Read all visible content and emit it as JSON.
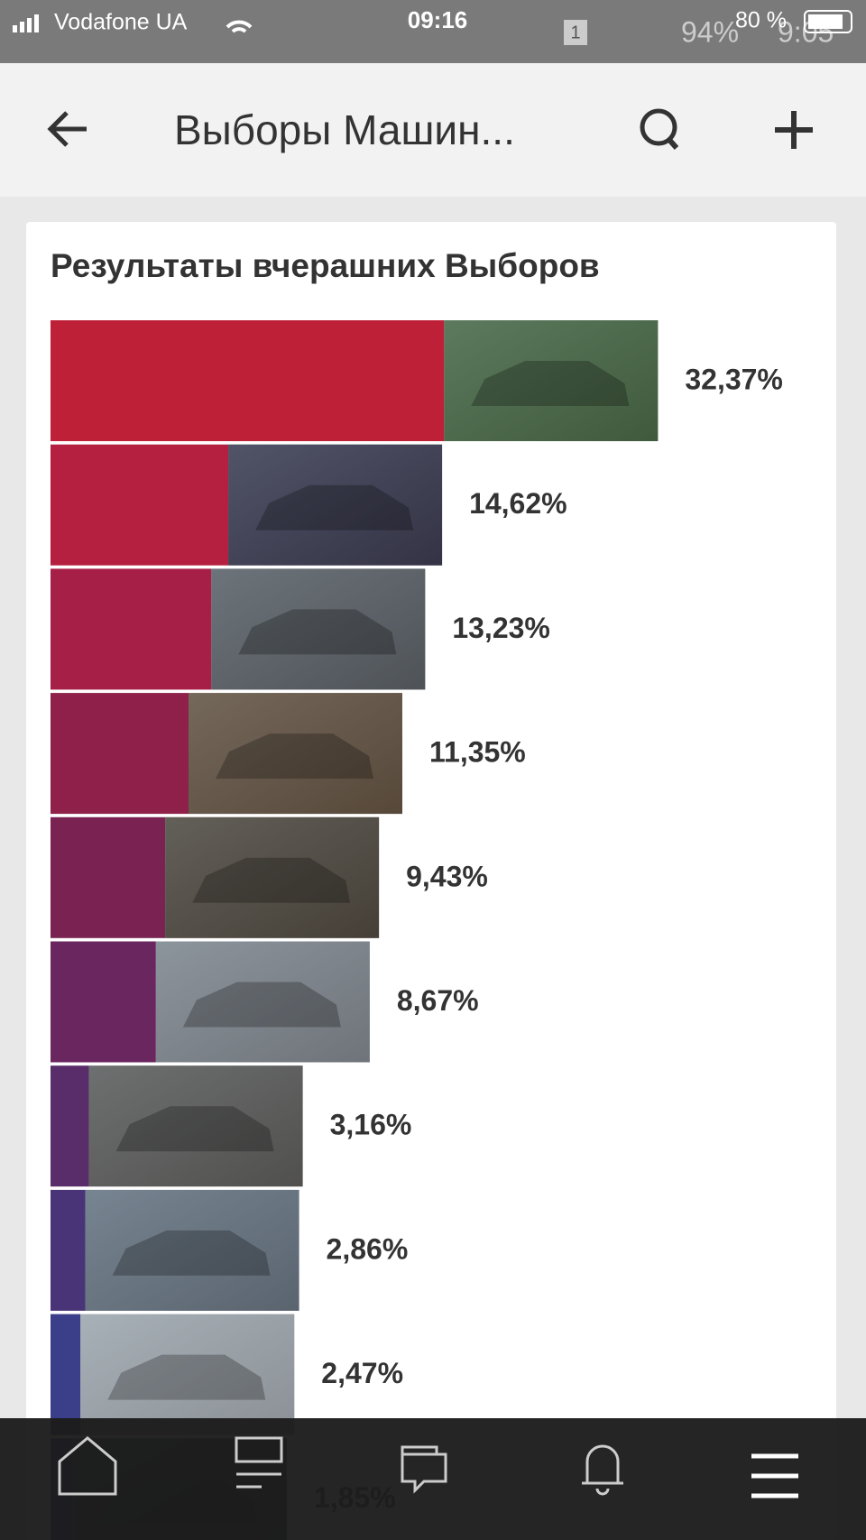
{
  "status_bar": {
    "carrier": "Vodafone UA",
    "time": "09:16",
    "battery": "80 %",
    "ghost_sim": "1",
    "ghost_battery": "94%",
    "ghost_time": "9:05"
  },
  "header": {
    "title": "Выборы Машин..."
  },
  "chart_data": {
    "type": "bar",
    "orientation": "horizontal",
    "title": "Результаты вчерашних Выборов",
    "values": [
      32.37,
      14.62,
      13.23,
      11.35,
      9.43,
      8.67,
      3.16,
      2.86,
      2.47,
      1.85
    ],
    "value_labels": [
      "32,37%",
      "14,62%",
      "13,23%",
      "11,35%",
      "9,43%",
      "8,67%",
      "3,16%",
      "2,86%",
      "2,47%",
      "1,85%"
    ],
    "colors": [
      "#be2038",
      "#b51f40",
      "#a61f46",
      "#8e2049",
      "#7a2352",
      "#6a265e",
      "#592c6a",
      "#4a3478",
      "#3b3e88",
      "#2f4594"
    ]
  }
}
